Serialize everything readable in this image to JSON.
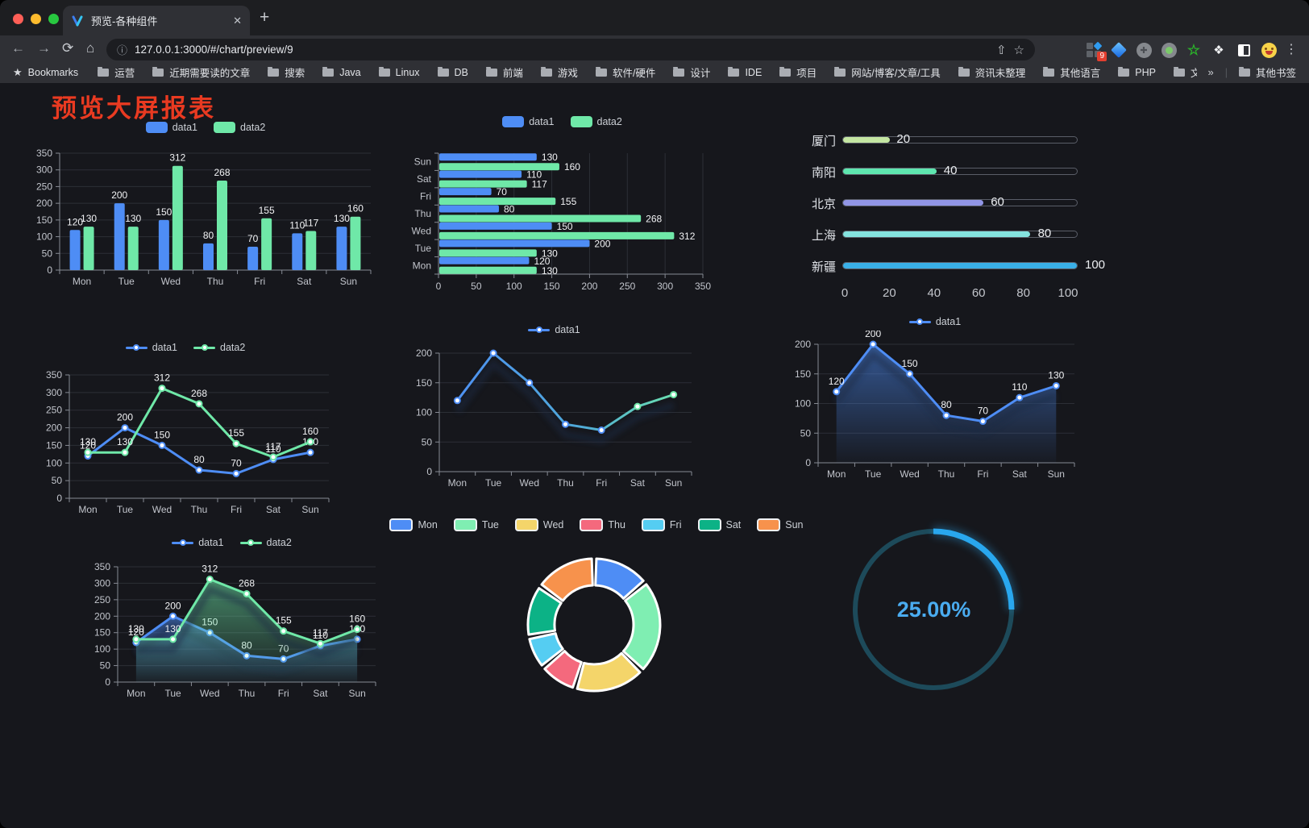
{
  "browser": {
    "tab": {
      "title": "预览-各种组件",
      "close_glyph": "✕"
    },
    "newtab_glyph": "+",
    "url": "127.0.0.1:3000/#/chart/preview/9",
    "icons": {
      "back": "←",
      "forward": "→",
      "reload": "⟳",
      "home": "⌂",
      "info": "ⓘ",
      "share": "⇧",
      "star": "☆",
      "dots": "⋮",
      "bookmark_star": "★",
      "overflow_chevron": "»",
      "divider": "|",
      "puzzle": "❖"
    },
    "extension_badge": "9",
    "bookmarks_label": "Bookmarks",
    "bookmarks": [
      "运营",
      "近期需要读的文章",
      "搜索",
      "Java",
      "Linux",
      "DB",
      "前端",
      "游戏",
      "软件/硬件",
      "设计",
      "IDE",
      "项目",
      "网站/博客/文章/工具",
      "资讯未整理",
      "其他语言",
      "PHP",
      "文件服务器"
    ],
    "other_bookmarks": "其他书签"
  },
  "page": {
    "title": "预览大屏报表",
    "title_color": "#e93a21"
  },
  "chart_data": [
    {
      "name": "grouped-bar",
      "type": "bar",
      "categories": [
        "Mon",
        "Tue",
        "Wed",
        "Thu",
        "Fri",
        "Sat",
        "Sun"
      ],
      "series": [
        {
          "name": "data1",
          "color": "#4e8df5",
          "values": [
            120,
            200,
            150,
            80,
            70,
            110,
            130
          ]
        },
        {
          "name": "data2",
          "color": "#6fe8a8",
          "values": [
            130,
            130,
            312,
            268,
            155,
            117,
            160
          ]
        }
      ],
      "ylim": [
        0,
        350
      ],
      "ystep": 50,
      "labels": true,
      "legend_position": "top",
      "grid": true
    },
    {
      "name": "horizontal-bar",
      "type": "hbar",
      "categories": [
        "Mon",
        "Tue",
        "Wed",
        "Thu",
        "Fri",
        "Sat",
        "Sun"
      ],
      "series": [
        {
          "name": "data1",
          "color": "#4e8df5",
          "values": [
            120,
            200,
            150,
            80,
            70,
            110,
            130
          ]
        },
        {
          "name": "data2",
          "color": "#6fe8a8",
          "values": [
            130,
            130,
            312,
            268,
            155,
            117,
            160
          ]
        }
      ],
      "xlim": [
        0,
        350
      ],
      "xstep": 50,
      "labels": true,
      "legend_position": "top",
      "grid": true
    },
    {
      "name": "city-progress",
      "type": "bar",
      "orientation": "horizontal-progress",
      "rows": [
        {
          "label": "厦门",
          "value": 20,
          "color": "#c4e6a2"
        },
        {
          "label": "南阳",
          "value": 40,
          "color": "#5ee6af"
        },
        {
          "label": "北京",
          "value": 60,
          "color": "#9195e6"
        },
        {
          "label": "上海",
          "value": 80,
          "color": "#84e3df"
        },
        {
          "label": "新疆",
          "value": 100,
          "color": "#3ab0e8"
        }
      ],
      "axis_ticks": [
        0,
        20,
        40,
        60,
        80,
        100
      ],
      "xlim": [
        0,
        100
      ]
    },
    {
      "name": "two-line",
      "type": "line",
      "categories": [
        "Mon",
        "Tue",
        "Wed",
        "Thu",
        "Fri",
        "Sat",
        "Sun"
      ],
      "series": [
        {
          "name": "data1",
          "color": "#4e8df5",
          "values": [
            120,
            200,
            150,
            80,
            70,
            110,
            130
          ]
        },
        {
          "name": "data2",
          "color": "#6fe8a8",
          "values": [
            130,
            130,
            312,
            268,
            155,
            117,
            160
          ]
        }
      ],
      "ylim": [
        0,
        350
      ],
      "ystep": 50,
      "labels": true,
      "legend_position": "top"
    },
    {
      "name": "gradient-line",
      "type": "line",
      "categories": [
        "Mon",
        "Tue",
        "Wed",
        "Thu",
        "Fri",
        "Sat",
        "Sun"
      ],
      "series": [
        {
          "name": "data1",
          "gradient": [
            "#4e8df5",
            "#6fe8a8"
          ],
          "values": [
            120,
            200,
            150,
            80,
            70,
            110,
            130
          ]
        }
      ],
      "ylim": [
        0,
        200
      ],
      "ystep": 50,
      "labels": false,
      "shadow": true,
      "legend_position": "top"
    },
    {
      "name": "blue-area",
      "type": "area",
      "categories": [
        "Mon",
        "Tue",
        "Wed",
        "Thu",
        "Fri",
        "Sat",
        "Sun"
      ],
      "series": [
        {
          "name": "data1",
          "color": "#4e8df5",
          "area": true,
          "values": [
            120,
            200,
            150,
            80,
            70,
            110,
            130
          ]
        }
      ],
      "ylim": [
        0,
        200
      ],
      "ystep": 50,
      "labels": true,
      "shadow": true,
      "legend_position": "top"
    },
    {
      "name": "two-area",
      "type": "area",
      "categories": [
        "Mon",
        "Tue",
        "Wed",
        "Thu",
        "Fri",
        "Sat",
        "Sun"
      ],
      "series": [
        {
          "name": "data1",
          "color": "#4e8df5",
          "area": true,
          "values": [
            120,
            200,
            150,
            80,
            70,
            110,
            130
          ]
        },
        {
          "name": "data2",
          "color": "#6fe8a8",
          "area": true,
          "values": [
            130,
            130,
            312,
            268,
            155,
            117,
            160
          ]
        }
      ],
      "ylim": [
        0,
        350
      ],
      "ystep": 50,
      "labels": true,
      "shadow": true,
      "legend_position": "top"
    },
    {
      "name": "donut",
      "type": "pie",
      "items": [
        {
          "label": "Mon",
          "value": 120,
          "color": "#4e8df5"
        },
        {
          "label": "Tue",
          "value": 200,
          "color": "#7feeb2"
        },
        {
          "label": "Wed",
          "value": 150,
          "color": "#f4d56a"
        },
        {
          "label": "Thu",
          "value": 80,
          "color": "#f4697d"
        },
        {
          "label": "Fri",
          "value": 70,
          "color": "#55cdf2"
        },
        {
          "label": "Sat",
          "value": 110,
          "color": "#0cb286"
        },
        {
          "label": "Sun",
          "value": 130,
          "color": "#f7924c"
        }
      ],
      "legend_position": "top",
      "donut": true
    },
    {
      "name": "gauge",
      "type": "pie",
      "gauge": true,
      "value": 25,
      "label": "25.00%",
      "color": "#29a7ee",
      "track_color": "#1d4a5a",
      "text_color": "#4aacf0"
    }
  ]
}
